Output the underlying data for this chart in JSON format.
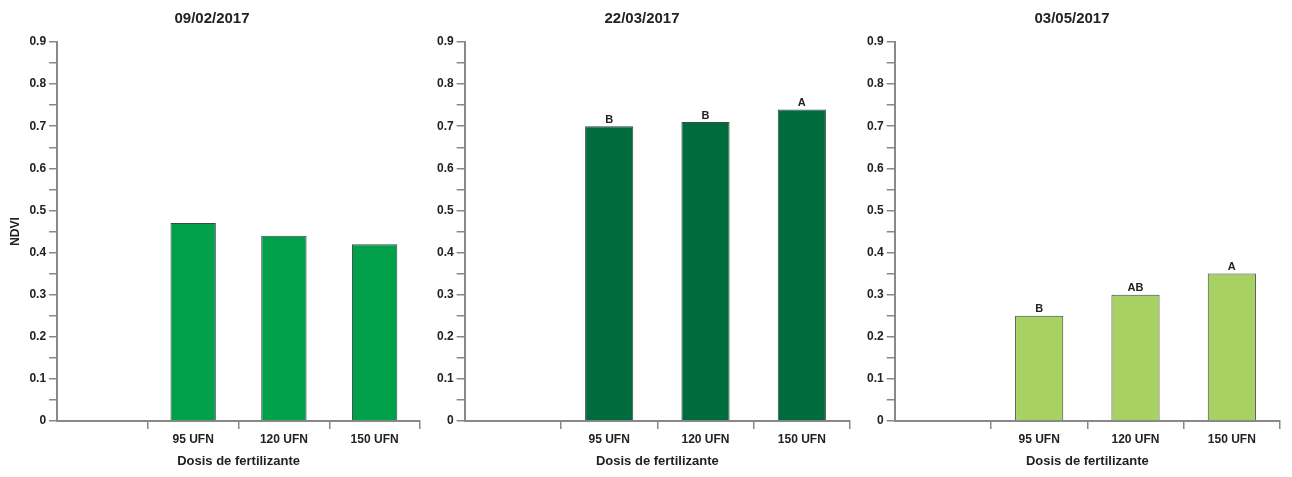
{
  "chart_data": [
    {
      "type": "bar",
      "title": "09/02/2017",
      "xlabel": "Dosis de fertilizante",
      "ylabel": "NDVI",
      "categories": [
        null,
        "95 UFN",
        "120 UFN",
        "150 UFN"
      ],
      "values": [
        null,
        0.47,
        0.44,
        0.42
      ],
      "color": "#00a04b",
      "ylim": [
        0,
        0.9
      ],
      "yticks": [
        0,
        {
          "value": 0.05,
          "label": null
        },
        0.1,
        {
          "value": 0.15,
          "label": null
        },
        0.2,
        {
          "value": 0.25,
          "label": null
        },
        0.3,
        {
          "value": 0.35,
          "label": null
        },
        0.4,
        {
          "value": 0.45,
          "label": null
        },
        0.5,
        {
          "value": 0.55,
          "label": null
        },
        0.6,
        {
          "value": 0.65,
          "label": null
        },
        0.7,
        {
          "value": 0.75,
          "label": null
        },
        0.8,
        {
          "value": 0.85,
          "label": null
        },
        0.9
      ],
      "grid": false,
      "legend": false
    },
    {
      "type": "bar",
      "title": "22/03/2017",
      "xlabel": "Dosis de fertilizante",
      "categories": [
        null,
        "95 UFN",
        "120 UFN",
        "150 UFN"
      ],
      "values": [
        null,
        0.7,
        0.71,
        0.74
      ],
      "color": "#006b3c",
      "ylim": [
        0,
        0.9
      ],
      "yticks": [
        0,
        {
          "value": 0.05,
          "label": null
        },
        0.1,
        {
          "value": 0.15,
          "label": null
        },
        0.2,
        {
          "value": 0.25,
          "label": null
        },
        0.3,
        {
          "value": 0.35,
          "label": null
        },
        0.4,
        {
          "value": 0.45,
          "label": null
        },
        0.5,
        {
          "value": 0.55,
          "label": null
        },
        0.6,
        {
          "value": 0.65,
          "label": null
        },
        0.7,
        {
          "value": 0.75,
          "label": null
        },
        0.8,
        {
          "value": 0.85,
          "label": null
        },
        0.9
      ],
      "grid": false,
      "legend": false,
      "annotations": [
        {
          "text": "B",
          "x": "95 UFN",
          "y": 0.7
        },
        {
          "text": "B",
          "x": "120 UFN",
          "y": 0.71
        },
        {
          "text": "A",
          "x": "150 UFN",
          "y": 0.74
        }
      ]
    },
    {
      "type": "bar",
      "title": "03/05/2017",
      "xlabel": "Dosis de fertilizante",
      "categories": [
        null,
        "95 UFN",
        "120 UFN",
        "150 UFN"
      ],
      "values": [
        null,
        0.25,
        0.3,
        0.35
      ],
      "color": "#a8d163",
      "ylim": [
        0,
        0.9
      ],
      "yticks": [
        0,
        {
          "value": 0.05,
          "label": null
        },
        0.1,
        {
          "value": 0.15,
          "label": null
        },
        0.2,
        {
          "value": 0.25,
          "label": null
        },
        0.3,
        {
          "value": 0.35,
          "label": null
        },
        0.4,
        {
          "value": 0.45,
          "label": null
        },
        0.5,
        {
          "value": 0.55,
          "label": null
        },
        0.6,
        {
          "value": 0.65,
          "label": null
        },
        0.7,
        {
          "value": 0.75,
          "label": null
        },
        0.8,
        {
          "value": 0.85,
          "label": null
        },
        0.9
      ],
      "grid": false,
      "legend": false,
      "annotations": [
        {
          "text": "B",
          "x": "95 UFN",
          "y": 0.25
        },
        {
          "text": "AB",
          "x": "120 UFN",
          "y": 0.3
        },
        {
          "text": "A",
          "x": "150 UFN",
          "y": 0.35
        }
      ]
    }
  ]
}
